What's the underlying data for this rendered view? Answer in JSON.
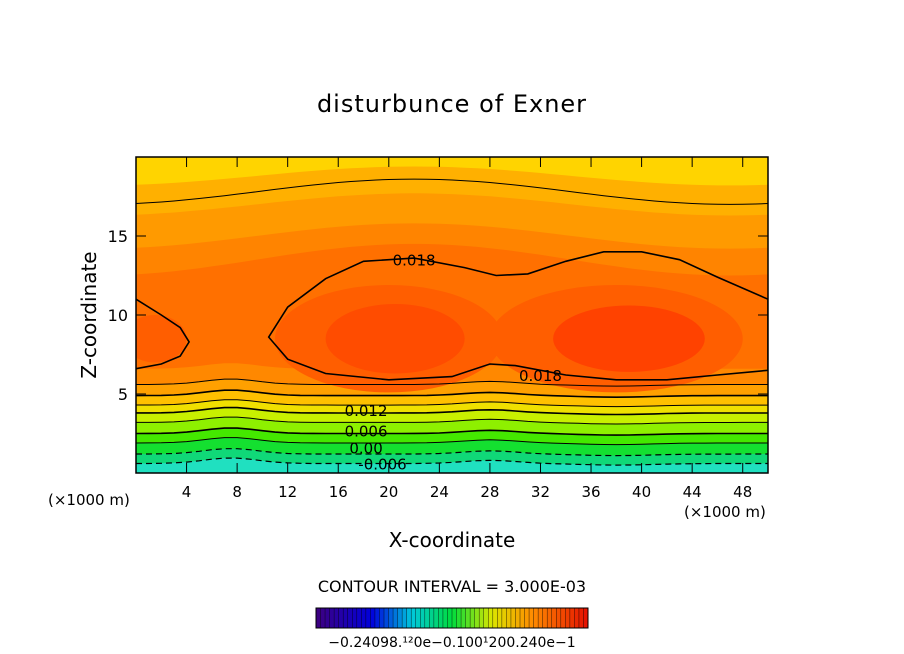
{
  "chart_data": {
    "type": "contour",
    "title": "disturbunce of Exner",
    "xlabel": "X-coordinate",
    "ylabel": "Z-coordinate",
    "x_unit": "(×1000 m)",
    "x_unit_right": "(×1000 m)",
    "xlim": [
      0,
      50
    ],
    "ylim": [
      0,
      20
    ],
    "x_ticks": [
      4,
      8,
      12,
      16,
      20,
      24,
      28,
      32,
      36,
      40,
      44,
      48
    ],
    "y_ticks": [
      5,
      10,
      15
    ],
    "contour_interval_text": "CONTOUR INTERVAL = 3.000E-03",
    "contour_labels": [
      {
        "text": "0.018",
        "x": 22,
        "z": 13.5
      },
      {
        "text": "0.018",
        "x": 32,
        "z": 6.2
      },
      {
        "text": "0.012",
        "x": 18.2,
        "z": 4.0
      },
      {
        "text": "0.006",
        "x": 18.2,
        "z": 2.7
      },
      {
        "text": "0.00",
        "x": 18.2,
        "z": 1.6
      },
      {
        "text": "-0.006",
        "x": 19.5,
        "z": 0.6
      }
    ],
    "colorbar_labels": [
      "−0.240",
      "0e−1",
      "−0.100e−1",
      "0.000",
      "0.1200",
      "0.240e−1"
    ],
    "colorbar_label_text": "−0.24098.¹²0e−0.100¹200.240e−1",
    "value_range": [
      -0.024,
      0.024
    ]
  }
}
